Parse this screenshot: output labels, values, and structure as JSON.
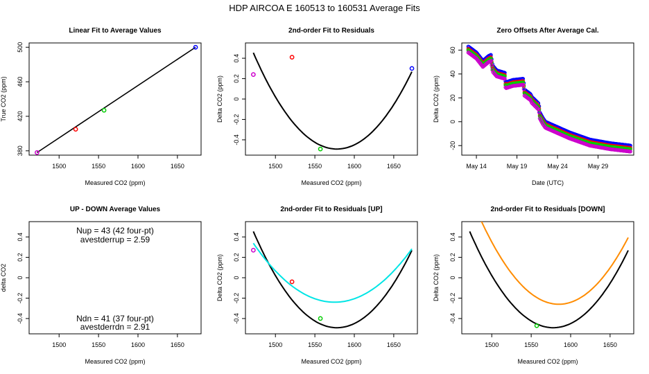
{
  "title": "HDP   AIRCOA E   160513 to 160531   Average Fits",
  "colors": {
    "black": "#000000",
    "red": "#ff0000",
    "green": "#00cc00",
    "blue": "#0000ff",
    "purple": "#cc00cc",
    "cyan": "#00e5e5",
    "orange": "#ff8c00"
  },
  "chart_data": [
    {
      "type": "scatter",
      "title": "Linear Fit to Average Values",
      "xlabel": "Measured CO2 (ppm)",
      "ylabel": "True CO2 (ppm)",
      "xlim": [
        1462,
        1680
      ],
      "ylim": [
        375,
        505
      ],
      "xticks": [
        1500,
        1550,
        1600,
        1650
      ],
      "yticks": [
        380,
        420,
        460,
        500
      ],
      "points": [
        {
          "x": 1472,
          "y": 378,
          "color": "purple"
        },
        {
          "x": 1521,
          "y": 405,
          "color": "red"
        },
        {
          "x": 1557,
          "y": 427,
          "color": "green"
        },
        {
          "x": 1673,
          "y": 500,
          "color": "blue"
        }
      ],
      "lines": [
        {
          "x": [
            1472,
            1673
          ],
          "y": [
            378,
            500
          ],
          "color": "black"
        }
      ]
    },
    {
      "type": "scatter",
      "title": "2nd-order Fit to Residuals",
      "xlabel": "Measured CO2 (ppm)",
      "ylabel": "Delta CO2 (ppm)",
      "xlim": [
        1462,
        1680
      ],
      "ylim": [
        -0.55,
        0.55
      ],
      "xticks": [
        1500,
        1550,
        1600,
        1650
      ],
      "yticks": [
        -0.4,
        -0.2,
        0.0,
        0.2,
        0.4
      ],
      "points": [
        {
          "x": 1472,
          "y": 0.24,
          "color": "purple"
        },
        {
          "x": 1521,
          "y": 0.41,
          "color": "red"
        },
        {
          "x": 1557,
          "y": -0.49,
          "color": "green"
        },
        {
          "x": 1673,
          "y": 0.3,
          "color": "blue"
        }
      ],
      "curves": [
        {
          "a": 8.4e-05,
          "xc": 1578,
          "ymin": -0.49,
          "x": [
            1472,
            1673
          ],
          "color": "black"
        }
      ]
    },
    {
      "type": "scatter",
      "title": "Zero Offsets After Average Cal.",
      "xlabel": "Date (UTC)",
      "ylabel": "Delta CO2 (ppm)",
      "xlim": [
        12.2,
        33.4
      ],
      "ylim": [
        -28,
        66
      ],
      "xticks": [
        14,
        19,
        24,
        29
      ],
      "xticklabels": [
        "May 14",
        "May 19",
        "May 24",
        "May 29"
      ],
      "yticks": [
        -20,
        0,
        20,
        40,
        60
      ],
      "series": [
        {
          "name": "blue",
          "color": "blue",
          "offset": 3
        },
        {
          "name": "red",
          "color": "red",
          "offset": 1
        },
        {
          "name": "green",
          "color": "green",
          "offset": 0
        },
        {
          "name": "purple",
          "color": "purple",
          "offset": -2
        }
      ],
      "base": {
        "x": [
          13.0,
          14.0,
          14.8,
          15.5,
          15.8,
          16.0,
          16.5,
          17.5,
          17.6,
          18.5,
          19.8,
          19.9,
          20.3,
          20.7,
          20.8,
          21.7,
          21.8,
          22.2,
          22.5,
          23.5,
          25.5,
          28.0,
          30.5,
          33.0
        ],
        "y": [
          60,
          55,
          48,
          52,
          53,
          44,
          40,
          38,
          30,
          32,
          33,
          24,
          22,
          20,
          18,
          12,
          5,
          0,
          -3,
          -6,
          -12,
          -18,
          -21,
          -23
        ]
      }
    },
    {
      "type": "text",
      "title": "UP - DOWN Average Values",
      "xlabel": "Measured CO2 (ppm)",
      "ylabel": "delta CO2",
      "xlim": [
        1462,
        1680
      ],
      "ylim": [
        -0.55,
        0.55
      ],
      "xticks": [
        1500,
        1550,
        1600,
        1650
      ],
      "yticks": [
        -0.4,
        -0.2,
        0.0,
        0.2,
        0.4
      ],
      "annotations": [
        "Nup = 43 (42 four-pt)",
        "avestderrup =  2.59",
        "Ndn = 41 (37 four-pt)",
        "avestderrdn =  2.91"
      ]
    },
    {
      "type": "scatter",
      "title": "2nd-order Fit to Residuals [UP]",
      "xlabel": "Measured CO2 (ppm)",
      "ylabel": "Delta CO2 (ppm)",
      "xlim": [
        1462,
        1680
      ],
      "ylim": [
        -0.55,
        0.55
      ],
      "xticks": [
        1500,
        1550,
        1600,
        1650
      ],
      "yticks": [
        -0.4,
        -0.2,
        0.0,
        0.2,
        0.4
      ],
      "points": [
        {
          "x": 1472,
          "y": 0.27,
          "color": "purple"
        },
        {
          "x": 1521,
          "y": -0.04,
          "color": "red"
        },
        {
          "x": 1557,
          "y": -0.4,
          "color": "green"
        }
      ],
      "curves": [
        {
          "a": 8.4e-05,
          "xc": 1578,
          "ymin": -0.49,
          "x": [
            1472,
            1673
          ],
          "color": "black"
        },
        {
          "a": 5.45e-05,
          "xc": 1575,
          "ymin": -0.24,
          "x": [
            1472,
            1673
          ],
          "color": "cyan"
        }
      ]
    },
    {
      "type": "scatter",
      "title": "2nd-order Fit to Residuals [DOWN]",
      "xlabel": "Measured CO2 (ppm)",
      "ylabel": "Delta CO2 (ppm)",
      "xlim": [
        1462,
        1680
      ],
      "ylim": [
        -0.55,
        0.55
      ],
      "xticks": [
        1500,
        1550,
        1600,
        1650
      ],
      "yticks": [
        -0.4,
        -0.2,
        0.0,
        0.2,
        0.4
      ],
      "points": [
        {
          "x": 1557,
          "y": -0.47,
          "color": "green"
        }
      ],
      "curves": [
        {
          "a": 8.4e-05,
          "xc": 1578,
          "ymin": -0.49,
          "x": [
            1472,
            1673
          ],
          "color": "black"
        },
        {
          "a": 8.45e-05,
          "xc": 1585,
          "ymin": -0.26,
          "x": [
            1472,
            1673
          ],
          "color": "orange"
        }
      ]
    }
  ]
}
